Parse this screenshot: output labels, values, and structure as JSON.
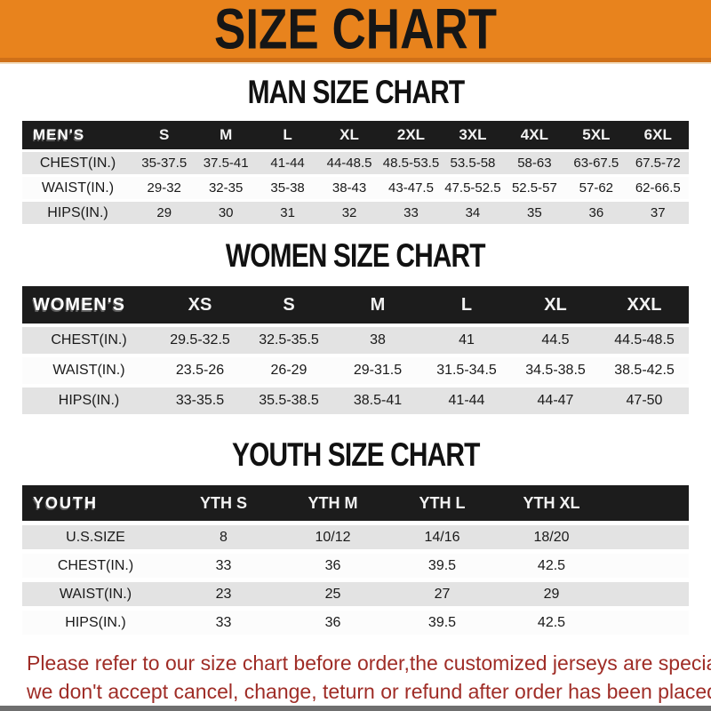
{
  "banner": {
    "title": "SIZE CHART"
  },
  "colors": {
    "banner_bg": "#e8831d",
    "banner_edge": "#cf7018",
    "header_bg": "#1c1c1c",
    "row_gray": "#e3e3e3",
    "row_white": "#fcfcfc",
    "disclaimer_red": "#9f2c26",
    "bottom_bar": "#6f6f6f"
  },
  "sections": {
    "men": {
      "title": "MAN SIZE CHART",
      "header_label": "MEN'S",
      "columns": [
        "S",
        "M",
        "L",
        "XL",
        "2XL",
        "3XL",
        "4XL",
        "5XL",
        "6XL"
      ],
      "rows": [
        {
          "label": "CHEST(IN.)",
          "values": [
            "35-37.5",
            "37.5-41",
            "41-44",
            "44-48.5",
            "48.5-53.5",
            "53.5-58",
            "58-63",
            "63-67.5",
            "67.5-72"
          ]
        },
        {
          "label": "WAIST(IN.)",
          "values": [
            "29-32",
            "32-35",
            "35-38",
            "38-43",
            "43-47.5",
            "47.5-52.5",
            "52.5-57",
            "57-62",
            "62-66.5"
          ]
        },
        {
          "label": "HIPS(IN.)",
          "values": [
            "29",
            "30",
            "31",
            "32",
            "33",
            "34",
            "35",
            "36",
            "37"
          ]
        }
      ]
    },
    "women": {
      "title": "WOMEN SIZE CHART",
      "header_label": "WOMEN'S",
      "columns": [
        "XS",
        "S",
        "M",
        "L",
        "XL",
        "XXL"
      ],
      "rows": [
        {
          "label": "CHEST(IN.)",
          "values": [
            "29.5-32.5",
            "32.5-35.5",
            "38",
            "41",
            "44.5",
            "44.5-48.5"
          ]
        },
        {
          "label": "WAIST(IN.)",
          "values": [
            "23.5-26",
            "26-29",
            "29-31.5",
            "31.5-34.5",
            "34.5-38.5",
            "38.5-42.5"
          ]
        },
        {
          "label": "HIPS(IN.)",
          "values": [
            "33-35.5",
            "35.5-38.5",
            "38.5-41",
            "41-44",
            "44-47",
            "47-50"
          ]
        }
      ]
    },
    "youth": {
      "title": "YOUTH SIZE CHART",
      "header_label": "YOUTH",
      "columns": [
        "YTH S",
        "YTH M",
        "YTH L",
        "YTH XL"
      ],
      "rows": [
        {
          "label": "U.S.SIZE",
          "values": [
            "8",
            "10/12",
            "14/16",
            "18/20"
          ]
        },
        {
          "label": "CHEST(IN.)",
          "values": [
            "33",
            "36",
            "39.5",
            "42.5"
          ]
        },
        {
          "label": "WAIST(IN.)",
          "values": [
            "23",
            "25",
            "27",
            "29"
          ]
        },
        {
          "label": "HIPS(IN.)",
          "values": [
            "33",
            "36",
            "39.5",
            "42.5"
          ]
        }
      ]
    }
  },
  "disclaimer": {
    "line1": "Please refer to our size chart before order,the customized jerseys are special products,",
    "line2": "we don't accept cancel, change, teturn or refund after order has been placed!"
  }
}
